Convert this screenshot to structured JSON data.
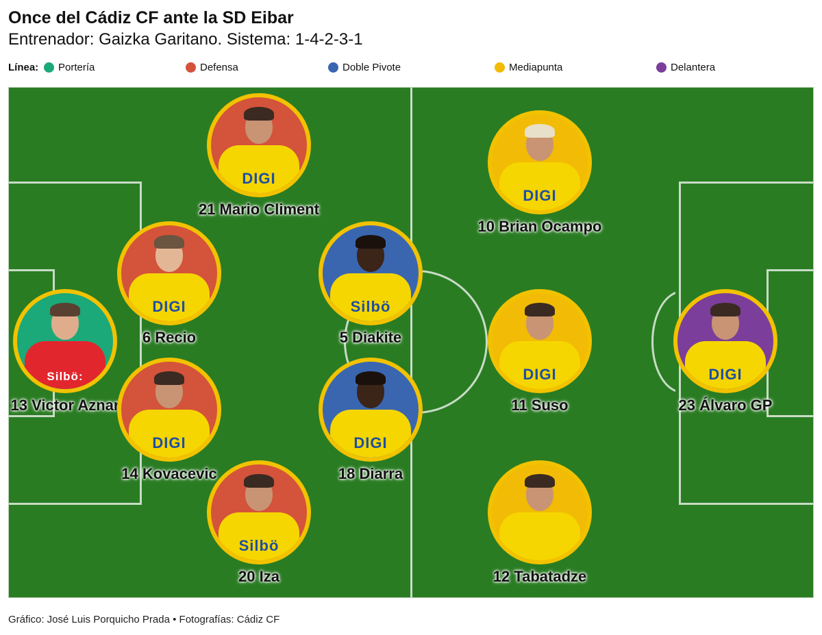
{
  "title": "Once del Cádiz CF ante la SD Eibar",
  "subtitle": "Entrenador: Gaizka Garitano. Sistema: 1-4-2-3-1",
  "legend": {
    "label": "Línea:",
    "items": [
      {
        "label": "Portería",
        "color": "#1ba97a"
      },
      {
        "label": "Defensa",
        "color": "#d4533b"
      },
      {
        "label": "Doble Pivote",
        "color": "#3a66b0"
      },
      {
        "label": "Mediapunta",
        "color": "#f2bb05"
      },
      {
        "label": "Delantera",
        "color": "#7b3e9a"
      }
    ]
  },
  "players": [
    {
      "name": "21 Mario Climent",
      "line": "Defensa",
      "sponsor": "DIGI",
      "kit": "yellow"
    },
    {
      "name": "10 Brian Ocampo",
      "line": "Mediapunta",
      "sponsor": "DIGI",
      "kit": "yellow"
    },
    {
      "name": "6 Recio",
      "line": "Defensa",
      "sponsor": "DIGI",
      "kit": "yellow"
    },
    {
      "name": "5 Diakite",
      "line": "Doble Pivote",
      "sponsor": "Silbö",
      "kit": "yellow"
    },
    {
      "name": "13 Victor Aznar",
      "line": "Portería",
      "sponsor": "Silbö:",
      "kit": "red"
    },
    {
      "name": "11 Suso",
      "line": "Mediapunta",
      "sponsor": "DIGI",
      "kit": "yellow"
    },
    {
      "name": "23 Álvaro GP",
      "line": "Delantera",
      "sponsor": "DIGI",
      "kit": "yellow"
    },
    {
      "name": "14 Kovacevic",
      "line": "Defensa",
      "sponsor": "DIGI",
      "kit": "yellow"
    },
    {
      "name": "18 Diarra",
      "line": "Doble Pivote",
      "sponsor": "DIGI",
      "kit": "yellow"
    },
    {
      "name": "20 Iza",
      "line": "Defensa",
      "sponsor": "Silbö",
      "kit": "yellow"
    },
    {
      "name": "12 Tabatadze",
      "line": "Mediapunta",
      "sponsor": "",
      "kit": "yellow"
    }
  ],
  "credit": "Gráfico: José Luis Porquicho Prada • Fotografías: Cádiz CF",
  "colors": {
    "pitch": "#2a7c23",
    "ring": "#f2c200"
  }
}
